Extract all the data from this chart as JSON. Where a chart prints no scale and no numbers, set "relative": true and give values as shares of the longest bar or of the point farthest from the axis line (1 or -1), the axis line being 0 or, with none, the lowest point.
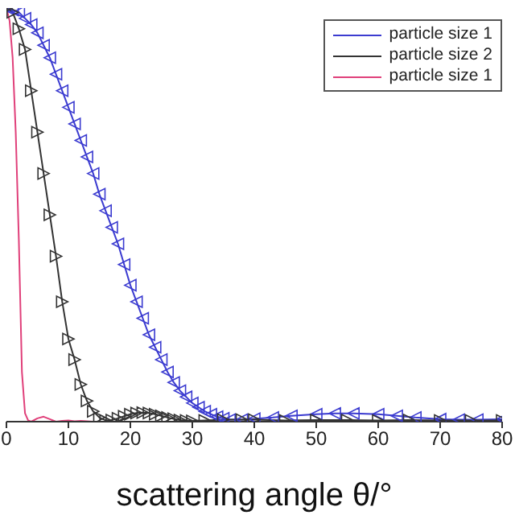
{
  "chart_data": {
    "type": "line",
    "xlabel": "scattering angle θ/°",
    "relative": true,
    "xlim": [
      0,
      80
    ],
    "xticks": [
      0,
      10,
      20,
      30,
      40,
      50,
      60,
      70,
      80
    ],
    "legend": "top right",
    "line_style": "solid",
    "series": [
      {
        "name": "particle size 1",
        "color": "#3b3bd0",
        "marker": "triangle",
        "x": [
          0,
          1,
          2,
          3,
          4,
          5,
          6,
          7,
          8,
          9,
          10,
          11,
          12,
          13,
          14,
          15,
          16,
          17,
          18,
          19,
          20,
          21,
          22,
          23,
          24,
          25,
          26,
          27,
          28,
          29,
          30,
          31,
          32,
          33,
          34,
          35,
          36,
          38,
          40,
          43,
          46,
          50,
          53,
          56,
          60,
          63,
          66,
          70,
          73,
          76,
          80
        ],
        "values": [
          1,
          0.995,
          0.99,
          0.975,
          0.96,
          0.94,
          0.91,
          0.88,
          0.84,
          0.8,
          0.76,
          0.72,
          0.68,
          0.64,
          0.6,
          0.55,
          0.51,
          0.47,
          0.43,
          0.38,
          0.33,
          0.29,
          0.25,
          0.21,
          0.18,
          0.15,
          0.12,
          0.095,
          0.075,
          0.06,
          0.045,
          0.035,
          0.025,
          0.018,
          0.012,
          0.008,
          0.005,
          0.005,
          0.007,
          0.01,
          0.014,
          0.018,
          0.02,
          0.02,
          0.018,
          0.014,
          0.01,
          0.006,
          0.005,
          0.005,
          0.006
        ]
      },
      {
        "name": "particle size 2",
        "color": "#333333",
        "marker": "triangle",
        "x": [
          0,
          1,
          2,
          3,
          4,
          5,
          6,
          7,
          8,
          9,
          10,
          11,
          12,
          13,
          14,
          15,
          16,
          17,
          18,
          19,
          20,
          21,
          22,
          23,
          24,
          25,
          26,
          27,
          28,
          29,
          30,
          32,
          35,
          38,
          40,
          45,
          50,
          55,
          60,
          65,
          70,
          75,
          80
        ],
        "values": [
          1,
          0.99,
          0.95,
          0.9,
          0.8,
          0.7,
          0.6,
          0.5,
          0.4,
          0.29,
          0.2,
          0.15,
          0.09,
          0.05,
          0.025,
          0.01,
          0.003,
          0.004,
          0.008,
          0.013,
          0.018,
          0.021,
          0.022,
          0.021,
          0.018,
          0.014,
          0.01,
          0.007,
          0.004,
          0.003,
          0.002,
          0.003,
          0.005,
          0.005,
          0.005,
          0.003,
          0.004,
          0.004,
          0.003,
          0.004,
          0.003,
          0.003,
          0.003
        ]
      },
      {
        "name": "particle size 1",
        "color": "#e0407a",
        "marker": "none",
        "x": [
          0,
          0.5,
          1,
          1.5,
          2,
          2.5,
          3,
          3.5,
          4,
          5,
          6,
          7,
          8,
          9,
          10,
          11,
          12,
          13,
          14
        ],
        "values": [
          1,
          0.97,
          0.88,
          0.7,
          0.44,
          0.12,
          0.02,
          0.003,
          0,
          0.008,
          0.012,
          0.006,
          0,
          0.002,
          0.003,
          0.001,
          0.002,
          0.001,
          0
        ]
      }
    ]
  }
}
